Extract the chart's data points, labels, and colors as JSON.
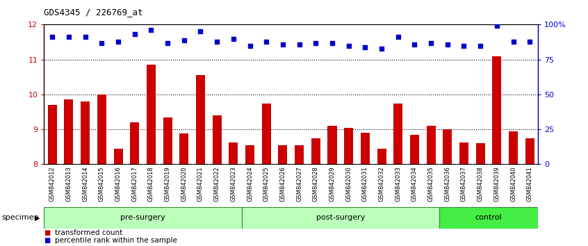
{
  "title": "GDS4345 / 226769_at",
  "categories": [
    "GSM842012",
    "GSM842013",
    "GSM842014",
    "GSM842015",
    "GSM842016",
    "GSM842017",
    "GSM842018",
    "GSM842019",
    "GSM842020",
    "GSM842021",
    "GSM842022",
    "GSM842023",
    "GSM842024",
    "GSM842025",
    "GSM842026",
    "GSM842027",
    "GSM842028",
    "GSM842029",
    "GSM842030",
    "GSM842031",
    "GSM842032",
    "GSM842033",
    "GSM842034",
    "GSM842035",
    "GSM842036",
    "GSM842037",
    "GSM842038",
    "GSM842039",
    "GSM842040",
    "GSM842041"
  ],
  "bar_values": [
    9.7,
    9.85,
    9.8,
    10.0,
    8.45,
    9.2,
    10.85,
    9.35,
    8.88,
    10.55,
    9.4,
    8.62,
    8.55,
    9.75,
    8.55,
    8.55,
    8.75,
    9.1,
    9.05,
    8.9,
    8.45,
    9.75,
    8.85,
    9.1,
    9.0,
    8.62,
    8.6,
    11.1,
    8.95,
    8.75
  ],
  "percentile_values": [
    91,
    91,
    91,
    87,
    88,
    93,
    96,
    87,
    89,
    95,
    88,
    90,
    85,
    88,
    86,
    86,
    87,
    87,
    85,
    84,
    83,
    91,
    86,
    87,
    86,
    85,
    85,
    99,
    88,
    88
  ],
  "bar_color": "#cc0000",
  "dot_color": "#0000cc",
  "ylim_left": [
    8,
    12
  ],
  "ylim_right": [
    0,
    100
  ],
  "yticks_left": [
    8,
    9,
    10,
    11,
    12
  ],
  "yticks_right": [
    0,
    25,
    50,
    75,
    100
  ],
  "ytick_labels_right": [
    "0",
    "25",
    "50",
    "75",
    "100%"
  ],
  "grid_values": [
    9,
    10,
    11
  ],
  "groups": [
    {
      "label": "pre-surgery",
      "start": 0,
      "end": 12,
      "color": "#bbffbb"
    },
    {
      "label": "post-surgery",
      "start": 12,
      "end": 24,
      "color": "#bbffbb"
    },
    {
      "label": "control",
      "start": 24,
      "end": 30,
      "color": "#44ee44"
    }
  ],
  "specimen_label": "specimen",
  "legend_items": [
    {
      "label": "transformed count",
      "color": "#cc0000",
      "marker": "s"
    },
    {
      "label": "percentile rank within the sample",
      "color": "#0000cc",
      "marker": "s"
    }
  ],
  "background_color": "#ffffff",
  "bar_bottom": 8
}
